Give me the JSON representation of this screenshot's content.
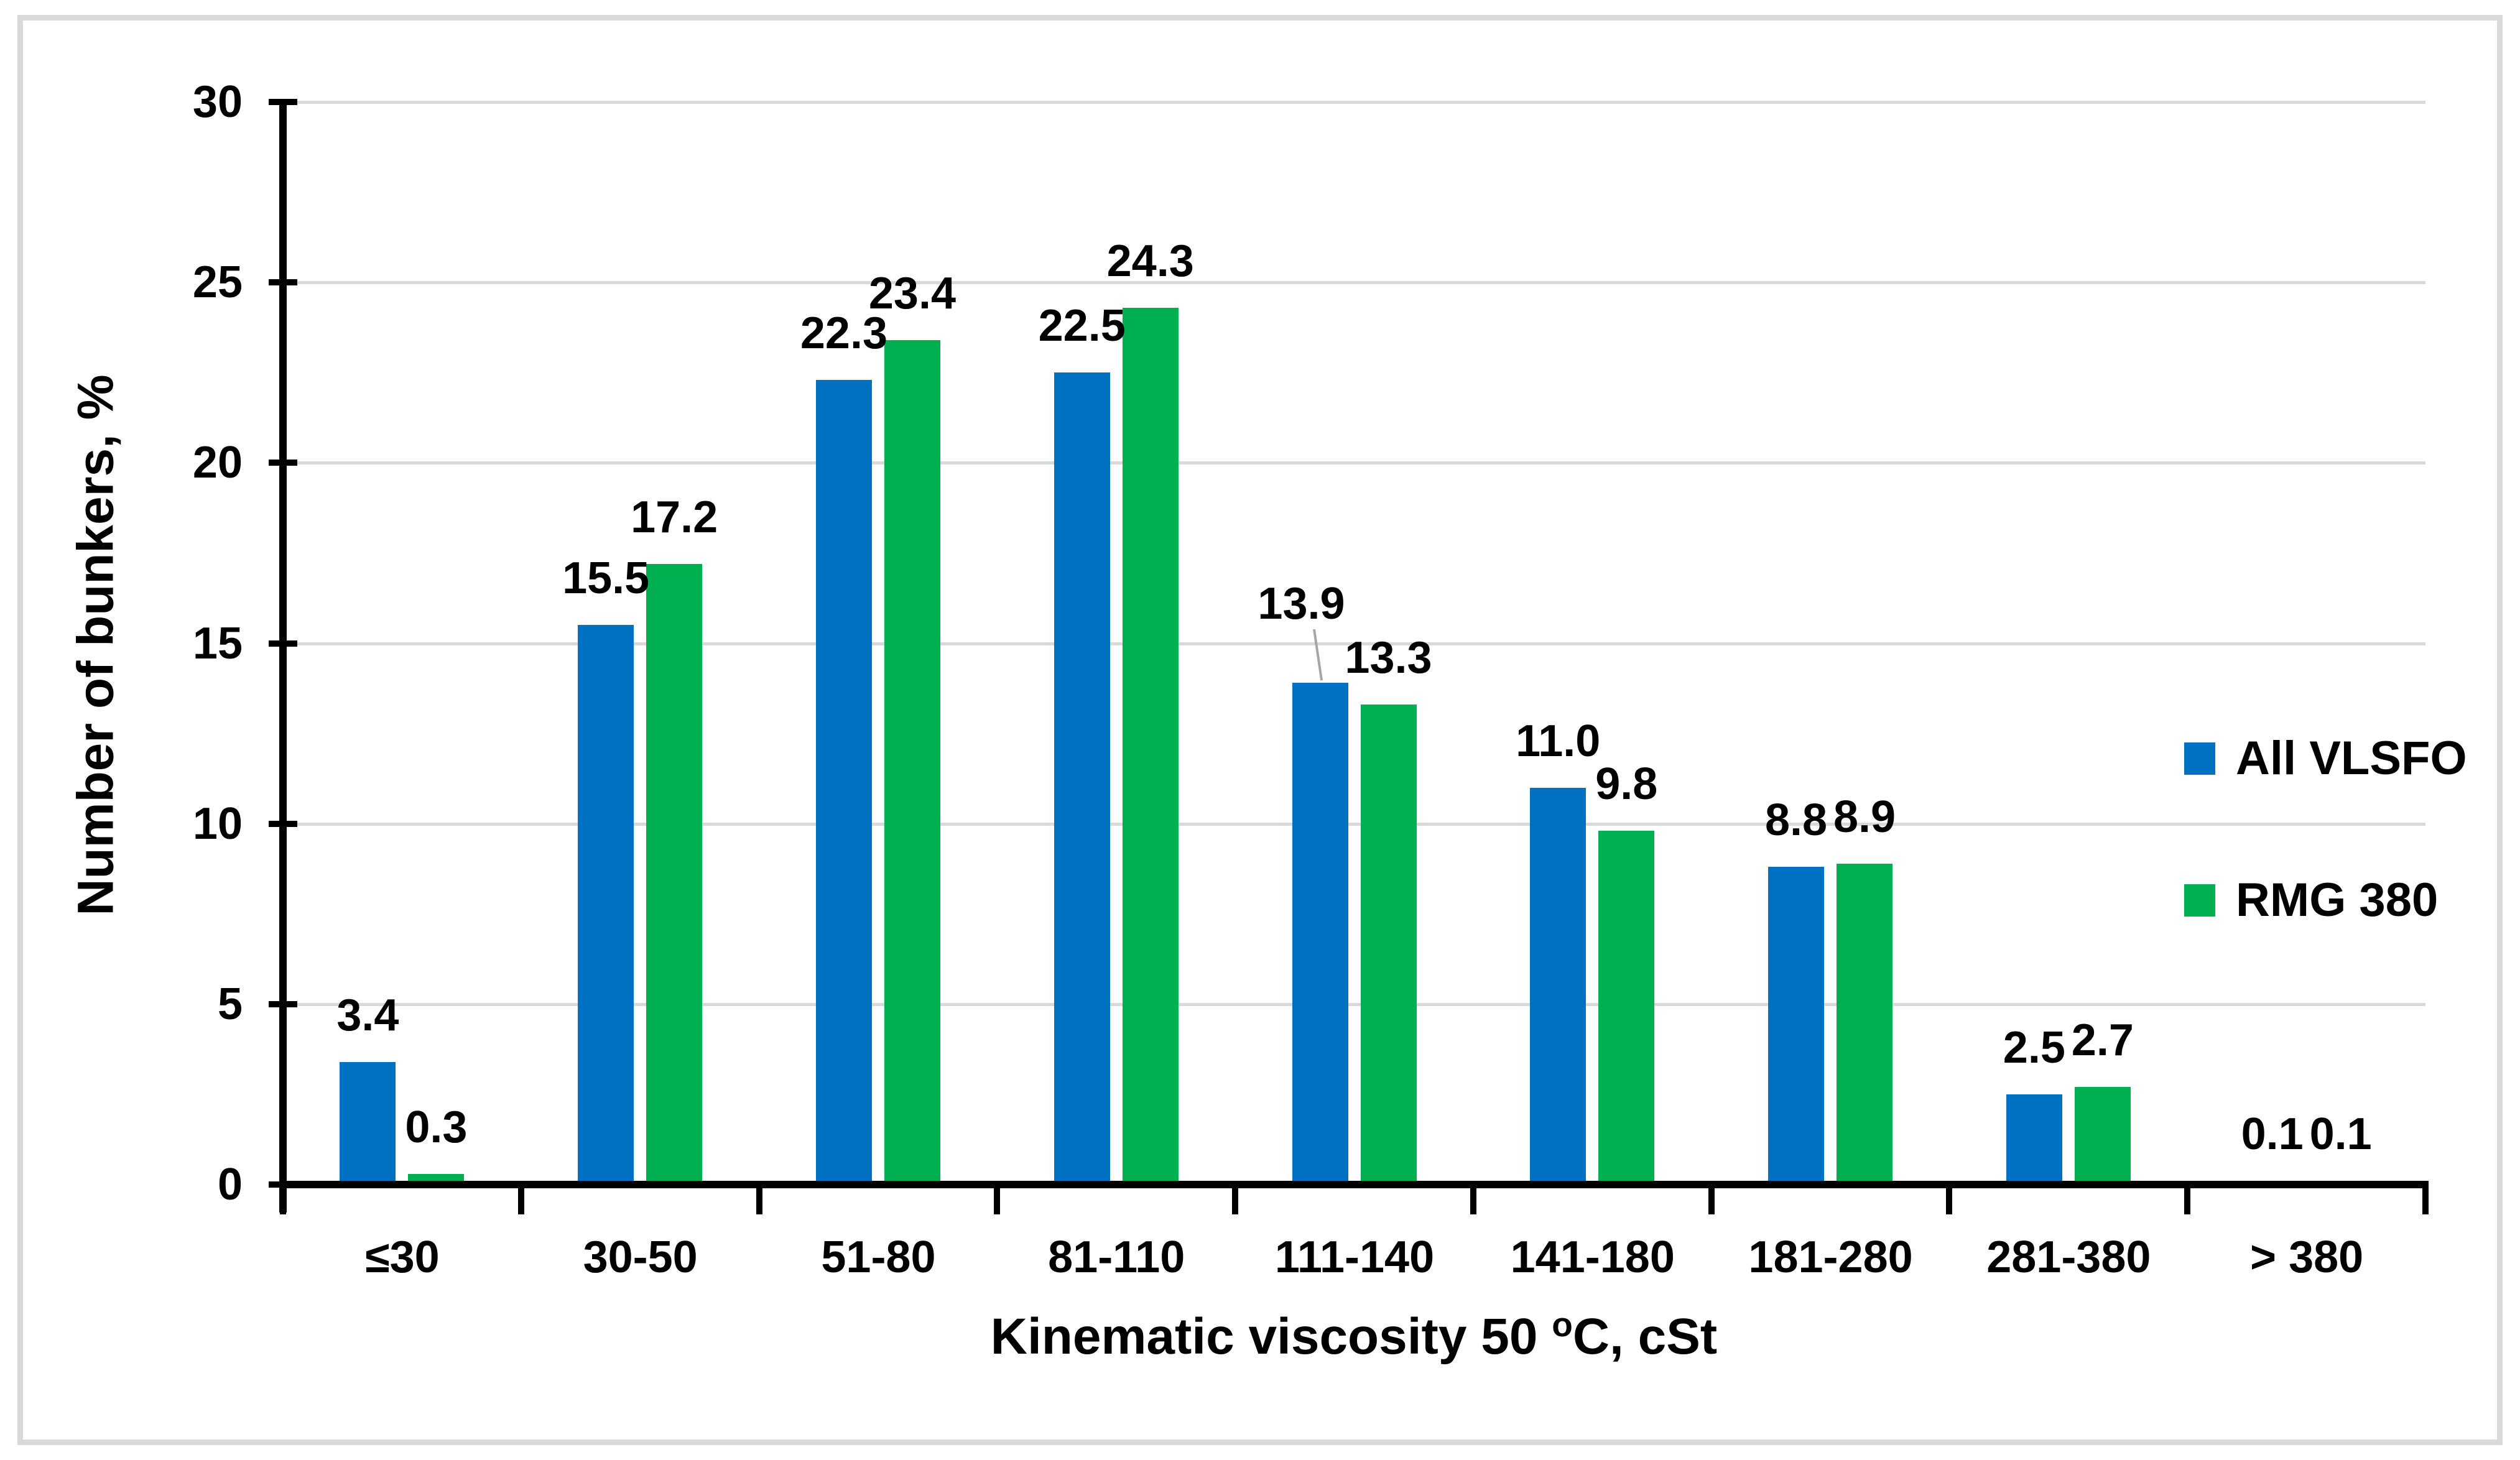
{
  "chart_data": {
    "type": "bar",
    "title": "",
    "categories": [
      "≤30",
      "30-50",
      "51-80",
      "81-110",
      "111-140",
      "141-180",
      "181-280",
      "281-380",
      "> 380"
    ],
    "series": [
      {
        "name": "All VLSFO",
        "color": "#0070C0",
        "values": [
          3.4,
          15.5,
          22.3,
          22.5,
          13.9,
          11.0,
          8.8,
          2.5,
          0.1
        ],
        "labels": [
          "3.4",
          "15.5",
          "22.3",
          "22.5",
          "13.9",
          "11.0",
          "8.8",
          "2.5",
          "0.1"
        ]
      },
      {
        "name": "RMG 380",
        "color": "#00B050",
        "values": [
          0.3,
          17.2,
          23.4,
          24.3,
          13.3,
          9.8,
          8.9,
          2.7,
          0.1
        ],
        "labels": [
          "0.3",
          "17.2",
          "23.4",
          "24.3",
          "13.3",
          "9.8",
          "8.9",
          "2.7",
          "0.1"
        ]
      }
    ],
    "xlabel": {
      "prefix": "Kinematic viscosity 50 ",
      "sup": "o",
      "suffix": "C, cSt"
    },
    "ylabel": "Number of bunkers, %",
    "ylim": [
      0,
      30
    ],
    "yticks": [
      0,
      5,
      10,
      15,
      20,
      25,
      30
    ],
    "grid": "horizontal",
    "gridline_color": "#D9D9D9",
    "axis_color": "#000000",
    "frame_border_color": "#D9D9D9",
    "leader_line_color": "#A6A6A6",
    "legend_position": "middle-right"
  }
}
